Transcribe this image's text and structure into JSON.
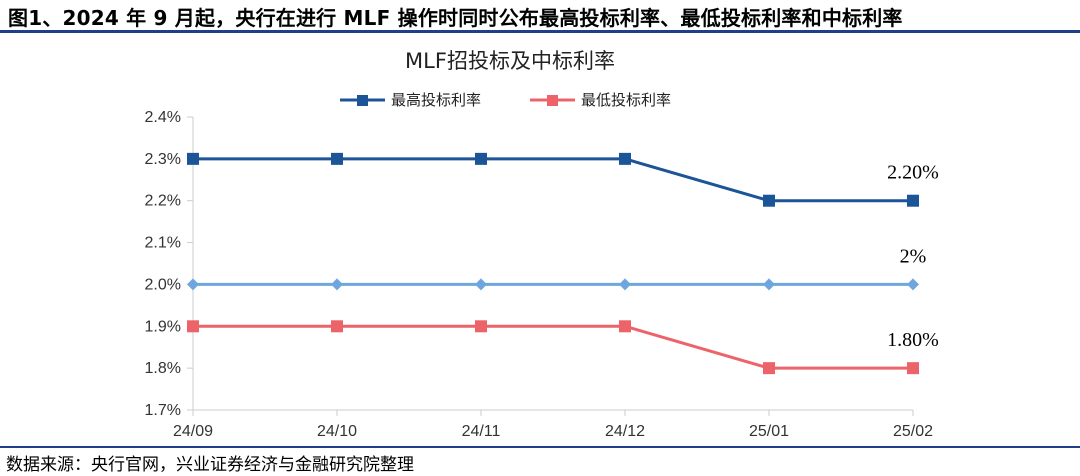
{
  "figure_title": "图1、2024 年 9 月起，央行在进行 MLF 操作时同时公布最高投标利率、最低投标利率和中标利率",
  "source_note": "数据来源：央行官网，兴业证券经济与金融研究院整理",
  "colors": {
    "rule": "#1f3f8c",
    "axis": "#cccccc",
    "grid": "#d9d9d9"
  },
  "chart_data": {
    "type": "line",
    "title": "MLF招投标及中标利率",
    "categories": [
      "24/09",
      "24/10",
      "24/11",
      "24/12",
      "25/01",
      "25/02"
    ],
    "ylim": [
      1.7,
      2.4
    ],
    "yticks": [
      "2.4%",
      "2.3%",
      "2.2%",
      "2.1%",
      "2.0%",
      "1.9%",
      "1.8%",
      "1.7%"
    ],
    "ytick_values": [
      2.4,
      2.3,
      2.2,
      2.1,
      2.0,
      1.9,
      1.8,
      1.7
    ],
    "grid": false,
    "legend_position": "top",
    "series": [
      {
        "name": "最高投标利率",
        "values": [
          2.3,
          2.3,
          2.3,
          2.3,
          2.2,
          2.2
        ],
        "color": "#1b5497",
        "marker": "square",
        "in_legend": true,
        "last_label": "2.20%"
      },
      {
        "name": "",
        "values": [
          2.0,
          2.0,
          2.0,
          2.0,
          2.0,
          2.0
        ],
        "color": "#6fa6e0",
        "marker": "diamond",
        "in_legend": false,
        "last_label": "2%"
      },
      {
        "name": "最低投标利率",
        "values": [
          1.9,
          1.9,
          1.9,
          1.9,
          1.8,
          1.8
        ],
        "color": "#ec6469",
        "marker": "square",
        "in_legend": true,
        "last_label": "1.80%"
      }
    ]
  }
}
